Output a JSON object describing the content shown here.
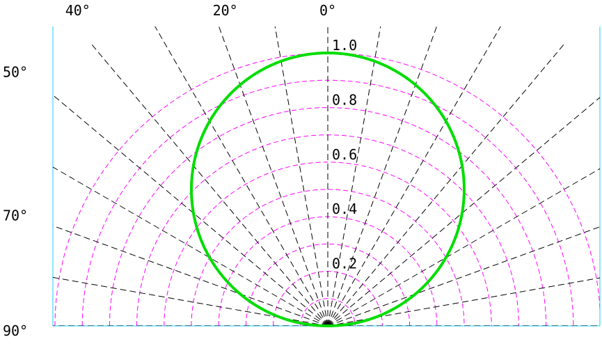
{
  "chart_data": {
    "type": "polar",
    "title": "",
    "angle_unit": "degrees",
    "angle_range": [
      -90,
      90
    ],
    "radial_range": [
      0,
      1.0
    ],
    "radial_ticks": [
      0.2,
      0.4,
      0.6,
      0.8,
      1.0
    ],
    "radial_tick_labels": [
      "0.2",
      "0.4",
      "0.6",
      "0.8",
      "1.0"
    ],
    "radial_gridlines": [
      0.1,
      0.2,
      0.3,
      0.4,
      0.5,
      0.6,
      0.7,
      0.8,
      0.9,
      1.0
    ],
    "angular_gridlines_step": 10,
    "angle_labels": [
      {
        "angle": -40,
        "text": "40°"
      },
      {
        "angle": -20,
        "text": "20°"
      },
      {
        "angle": 0,
        "text": "0°"
      },
      {
        "angle": -50,
        "text": "50°"
      },
      {
        "angle": -70,
        "text": "70°"
      },
      {
        "angle": -90,
        "text": "90°"
      }
    ],
    "series": [
      {
        "color": "#00dd00",
        "curve": "cosine",
        "points": [
          {
            "angle": 0,
            "r": 1.0
          },
          {
            "angle": 10,
            "r": 0.985
          },
          {
            "angle": 20,
            "r": 0.94
          },
          {
            "angle": 30,
            "r": 0.866
          },
          {
            "angle": 40,
            "r": 0.766
          },
          {
            "angle": 50,
            "r": 0.643
          },
          {
            "angle": 60,
            "r": 0.5
          },
          {
            "angle": 70,
            "r": 0.342
          },
          {
            "angle": 80,
            "r": 0.174
          },
          {
            "angle": 90,
            "r": 0.0
          }
        ]
      }
    ],
    "colors": {
      "radial_grid": "#ff00ff",
      "angular_grid": "#000000",
      "frame": "#66ddff",
      "series": "#00dd00",
      "text": "#000000"
    },
    "grid": true,
    "legend": "none"
  }
}
